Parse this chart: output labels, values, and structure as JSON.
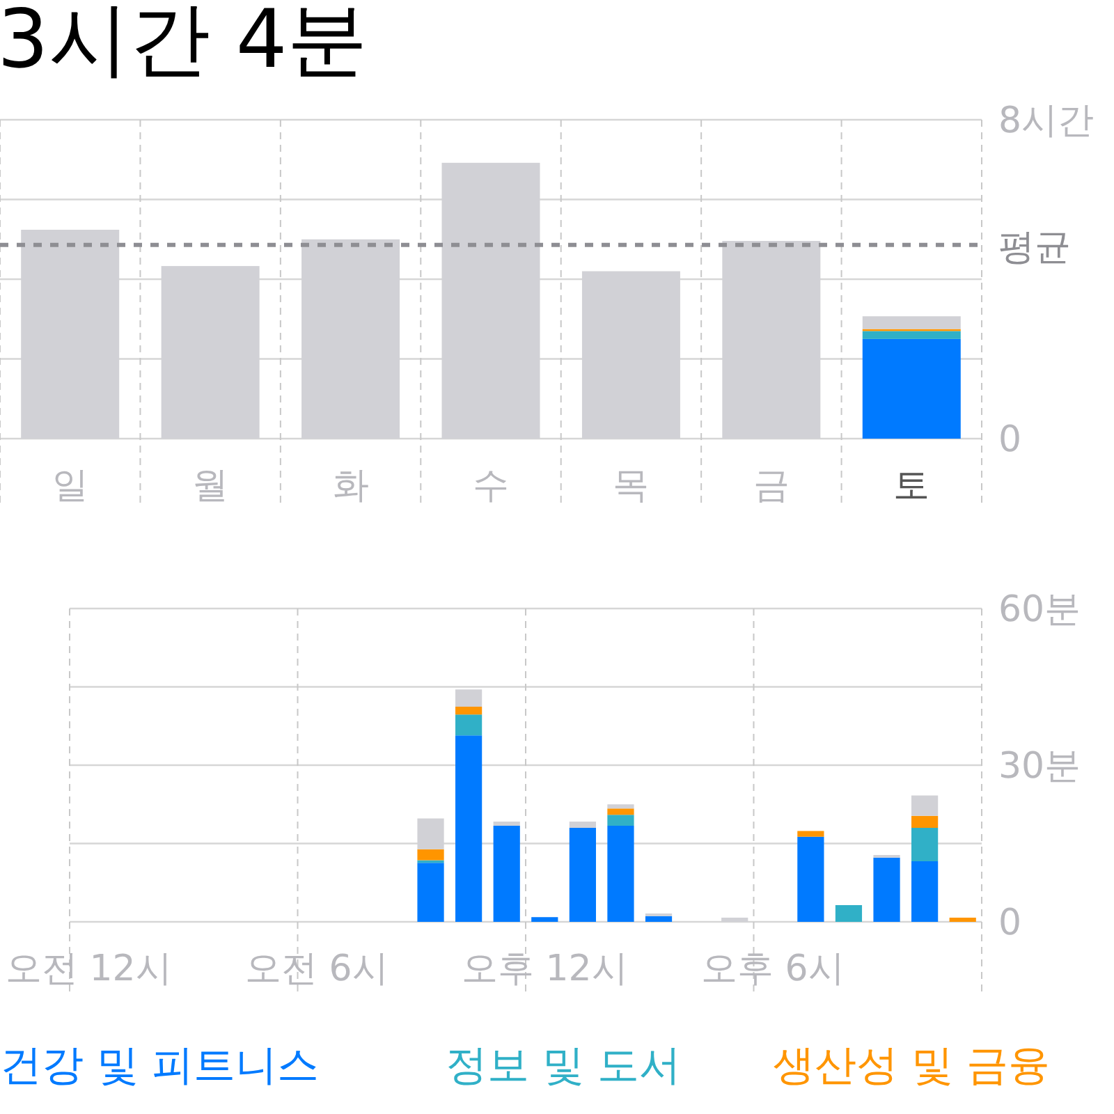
{
  "chart_data": [
    {
      "type": "bar",
      "title": "3시간 4분",
      "categories": [
        "일",
        "월",
        "화",
        "수",
        "목",
        "금",
        "토"
      ],
      "stacked": true,
      "series": [
        {
          "color": "#007aff",
          "values": [
            null,
            null,
            null,
            null,
            null,
            null,
            2.5
          ]
        },
        {
          "color": "#30b0c7",
          "values": [
            null,
            null,
            null,
            null,
            null,
            null,
            0.2
          ]
        },
        {
          "color": "#ff9500",
          "values": [
            null,
            null,
            null,
            null,
            null,
            null,
            0.05
          ]
        },
        {
          "color": "#d1d1d6",
          "values": [
            5.24,
            4.33,
            5.0,
            6.92,
            4.2,
            4.96,
            0.32
          ]
        }
      ],
      "ylim": [
        0,
        8
      ],
      "yticks": [
        0,
        {
          "value": 2,
          "label": null
        },
        {
          "value": 4,
          "label": null
        },
        {
          "value": 6,
          "label": null
        },
        {
          "value": 8,
          "label": "8시간"
        }
      ],
      "ref_lines": [
        {
          "axis": "y",
          "value": 4.86,
          "label": "평균",
          "color": "#8e8e93",
          "line_style": "dashed"
        }
      ],
      "grid": true
    },
    {
      "type": "bar",
      "categories": [
        "오전 12시",
        null,
        null,
        null,
        null,
        null,
        "오전 6시",
        null,
        null,
        null,
        null,
        null,
        "오후 12시",
        null,
        null,
        null,
        null,
        null,
        "오후 6시",
        null,
        null,
        null,
        null,
        null
      ],
      "stacked": true,
      "series": [
        {
          "name": "건강 및 피트니스",
          "color": "#007aff",
          "values": [
            null,
            null,
            null,
            null,
            null,
            null,
            null,
            null,
            null,
            11.3,
            35.7,
            18.4,
            0.9,
            18,
            18.4,
            1.1,
            null,
            null,
            null,
            16.3,
            null,
            12.3,
            11.6,
            null
          ]
        },
        {
          "name": "정보 및 도서",
          "color": "#30b0c7",
          "values": [
            null,
            null,
            null,
            null,
            null,
            null,
            null,
            null,
            null,
            0.5,
            4.0,
            null,
            null,
            null,
            2.1,
            null,
            null,
            null,
            null,
            null,
            3.2,
            null,
            6.4,
            null
          ]
        },
        {
          "name": "생산성 및 금융",
          "color": "#ff9500",
          "values": [
            null,
            null,
            null,
            null,
            null,
            null,
            null,
            null,
            null,
            2.1,
            1.5,
            null,
            null,
            null,
            1.2,
            null,
            null,
            null,
            null,
            1.1,
            null,
            null,
            2.3,
            0.8
          ]
        },
        {
          "color": "#d1d1d6",
          "values": [
            null,
            null,
            null,
            null,
            null,
            null,
            null,
            null,
            null,
            5.9,
            3.3,
            0.8,
            null,
            1.2,
            0.8,
            0.5,
            null,
            0.8,
            null,
            null,
            null,
            0.5,
            3.9,
            null
          ]
        }
      ],
      "ylim": [
        0,
        60
      ],
      "yticks": [
        0,
        {
          "value": 15,
          "label": null
        },
        {
          "value": 30,
          "label": "30분"
        },
        {
          "value": 45,
          "label": null
        },
        {
          "value": 60,
          "label": "60분"
        }
      ],
      "grid": true,
      "legend": "bottom"
    }
  ]
}
